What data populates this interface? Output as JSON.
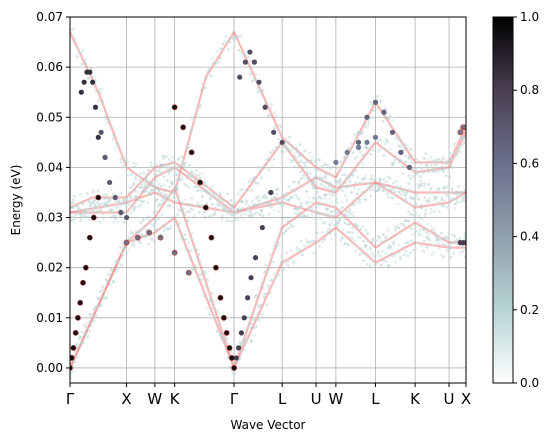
{
  "chart_data": {
    "type": "scatter",
    "title": "",
    "xlabel": "Wave Vector",
    "ylabel": "Energy (eV)",
    "ylim": [
      -0.003,
      0.07
    ],
    "yticks": [
      0.0,
      0.01,
      0.02,
      0.03,
      0.04,
      0.05,
      0.06,
      0.07
    ],
    "ytick_labels": [
      "0.00",
      "0.01",
      "0.02",
      "0.03",
      "0.04",
      "0.05",
      "0.06",
      "0.07"
    ],
    "xlim": [
      0,
      7.0
    ],
    "kpoints": [
      {
        "label": "Γ",
        "x": 0.0
      },
      {
        "label": "X",
        "x": 1.0
      },
      {
        "label": "W",
        "x": 1.5
      },
      {
        "label": "K",
        "x": 1.85
      },
      {
        "label": "Γ",
        "x": 2.9
      },
      {
        "label": "L",
        "x": 3.75
      },
      {
        "label": "U",
        "x": 4.35
      },
      {
        "label": "W",
        "x": 4.7
      },
      {
        "label": "L",
        "x": 5.4
      },
      {
        "label": "K",
        "x": 6.1
      },
      {
        "label": "U",
        "x": 6.7
      },
      {
        "label": "X",
        "x": 7.0
      }
    ],
    "grid": true,
    "colorbar": {
      "range": [
        0.0,
        1.0
      ],
      "ticks": [
        0.0,
        0.2,
        0.4,
        0.6,
        0.8,
        1.0
      ],
      "tick_labels": [
        "0.0",
        "0.2",
        "0.4",
        "0.6",
        "0.8",
        "1.0"
      ],
      "colormap": [
        "#ffffff",
        "#b7d4d4",
        "#8f9fac",
        "#6b6f8c",
        "#4a3f52",
        "#000000"
      ]
    },
    "reference_color": "#f08080",
    "reference_bands": [
      [
        [
          0,
          0.0
        ],
        [
          1,
          0.025
        ],
        [
          1.5,
          0.027
        ],
        [
          1.85,
          0.03
        ],
        [
          2.9,
          0.0
        ],
        [
          3.75,
          0.021
        ],
        [
          4.35,
          0.025
        ],
        [
          4.7,
          0.028
        ],
        [
          5.4,
          0.021
        ],
        [
          6.1,
          0.025
        ],
        [
          6.7,
          0.024
        ],
        [
          7,
          0.024
        ]
      ],
      [
        [
          0,
          0.0
        ],
        [
          1,
          0.025
        ],
        [
          1.5,
          0.03
        ],
        [
          1.85,
          0.036
        ],
        [
          2.9,
          0.0
        ],
        [
          3.75,
          0.028
        ],
        [
          4.35,
          0.033
        ],
        [
          4.7,
          0.032
        ],
        [
          5.4,
          0.024
        ],
        [
          6.1,
          0.029
        ],
        [
          6.7,
          0.025
        ],
        [
          7,
          0.025
        ]
      ],
      [
        [
          0,
          0.031
        ],
        [
          1,
          0.033
        ],
        [
          1.5,
          0.035
        ],
        [
          1.85,
          0.033
        ],
        [
          2.9,
          0.031
        ],
        [
          3.75,
          0.033
        ],
        [
          4.35,
          0.031
        ],
        [
          4.7,
          0.03
        ],
        [
          5.4,
          0.037
        ],
        [
          6.1,
          0.032
        ],
        [
          6.7,
          0.033
        ],
        [
          7,
          0.035
        ]
      ],
      [
        [
          0,
          0.031
        ],
        [
          1,
          0.031
        ],
        [
          1.5,
          0.038
        ],
        [
          1.85,
          0.04
        ],
        [
          2.9,
          0.031
        ],
        [
          3.75,
          0.034
        ],
        [
          4.35,
          0.038
        ],
        [
          4.7,
          0.036
        ],
        [
          5.4,
          0.037
        ],
        [
          6.1,
          0.035
        ],
        [
          6.7,
          0.035
        ],
        [
          7,
          0.035
        ]
      ],
      [
        [
          0,
          0.032
        ],
        [
          0.4,
          0.034
        ],
        [
          1,
          0.034
        ],
        [
          1.5,
          0.04
        ],
        [
          1.85,
          0.041
        ],
        [
          2.9,
          0.032
        ],
        [
          3.75,
          0.045
        ],
        [
          4.35,
          0.036
        ],
        [
          4.7,
          0.035
        ],
        [
          5.4,
          0.045
        ],
        [
          6.1,
          0.039
        ],
        [
          6.7,
          0.04
        ],
        [
          7,
          0.047
        ]
      ],
      [
        [
          0,
          0.067
        ],
        [
          0.5,
          0.055
        ],
        [
          1,
          0.04
        ],
        [
          1.5,
          0.036
        ],
        [
          1.85,
          0.035
        ],
        [
          2.4,
          0.058
        ],
        [
          2.9,
          0.067
        ],
        [
          3.75,
          0.046
        ],
        [
          4.35,
          0.04
        ],
        [
          4.7,
          0.038
        ],
        [
          5.4,
          0.053
        ],
        [
          6.1,
          0.041
        ],
        [
          6.7,
          0.041
        ],
        [
          7,
          0.048
        ]
      ]
    ],
    "series": [
      {
        "values": [
          [
            0.0,
            0.0
          ],
          [
            0.03,
            0.002
          ],
          [
            0.06,
            0.004
          ],
          [
            0.1,
            0.007
          ],
          [
            0.14,
            0.01
          ],
          [
            0.18,
            0.013
          ],
          [
            0.23,
            0.017
          ],
          [
            0.28,
            0.02
          ],
          [
            0.35,
            0.026
          ],
          [
            0.42,
            0.03
          ],
          [
            0.5,
            0.034
          ]
        ],
        "intensity": 0.95
      },
      {
        "values": [
          [
            0.5,
            0.046
          ],
          [
            0.45,
            0.052
          ],
          [
            0.4,
            0.057
          ],
          [
            0.35,
            0.059
          ],
          [
            0.3,
            0.059
          ],
          [
            0.25,
            0.057
          ],
          [
            0.2,
            0.055
          ]
        ],
        "intensity": 0.85
      },
      {
        "values": [
          [
            0.55,
            0.047
          ],
          [
            0.62,
            0.042
          ],
          [
            0.7,
            0.037
          ],
          [
            0.8,
            0.034
          ],
          [
            0.9,
            0.031
          ],
          [
            1.0,
            0.03
          ]
        ],
        "intensity": 0.7
      },
      {
        "values": [
          [
            2.9,
            0.0
          ],
          [
            2.86,
            0.002
          ],
          [
            2.82,
            0.004
          ],
          [
            2.77,
            0.007
          ],
          [
            2.72,
            0.01
          ],
          [
            2.66,
            0.014
          ],
          [
            2.58,
            0.02
          ],
          [
            2.5,
            0.026
          ],
          [
            2.4,
            0.032
          ],
          [
            2.3,
            0.037
          ],
          [
            2.15,
            0.043
          ],
          [
            2.0,
            0.048
          ],
          [
            1.85,
            0.052
          ]
        ],
        "intensity": 0.95
      },
      {
        "values": [
          [
            2.94,
            0.002
          ],
          [
            2.98,
            0.004
          ],
          [
            3.03,
            0.007
          ],
          [
            3.08,
            0.01
          ],
          [
            3.14,
            0.014
          ],
          [
            3.2,
            0.018
          ],
          [
            3.28,
            0.022
          ],
          [
            3.4,
            0.028
          ],
          [
            3.55,
            0.035
          ]
        ],
        "intensity": 0.8
      },
      {
        "values": [
          [
            3.0,
            0.058
          ],
          [
            3.1,
            0.061
          ],
          [
            3.18,
            0.063
          ],
          [
            3.26,
            0.061
          ],
          [
            3.34,
            0.057
          ],
          [
            3.45,
            0.052
          ],
          [
            3.6,
            0.047
          ],
          [
            3.75,
            0.045
          ]
        ],
        "intensity": 0.75
      },
      {
        "values": [
          [
            1.0,
            0.025
          ],
          [
            1.2,
            0.026
          ],
          [
            1.4,
            0.027
          ],
          [
            1.6,
            0.026
          ],
          [
            1.85,
            0.023
          ],
          [
            2.1,
            0.019
          ]
        ],
        "intensity": 0.6
      },
      {
        "values": [
          [
            5.1,
            0.045
          ],
          [
            5.25,
            0.05
          ],
          [
            5.4,
            0.053
          ],
          [
            5.55,
            0.051
          ],
          [
            5.7,
            0.047
          ],
          [
            5.85,
            0.043
          ],
          [
            6.0,
            0.04
          ]
        ],
        "intensity": 0.65
      },
      {
        "values": [
          [
            4.7,
            0.041
          ],
          [
            4.9,
            0.043
          ],
          [
            5.1,
            0.044
          ],
          [
            5.25,
            0.045
          ],
          [
            5.4,
            0.046
          ]
        ],
        "intensity": 0.55
      },
      {
        "values": [
          [
            6.9,
            0.047
          ],
          [
            6.95,
            0.048
          ],
          [
            7.0,
            0.048
          ]
        ],
        "intensity": 0.55
      },
      {
        "values": [
          [
            6.9,
            0.025
          ],
          [
            6.95,
            0.025
          ],
          [
            7.0,
            0.025
          ]
        ],
        "intensity": 0.8
      }
    ]
  }
}
